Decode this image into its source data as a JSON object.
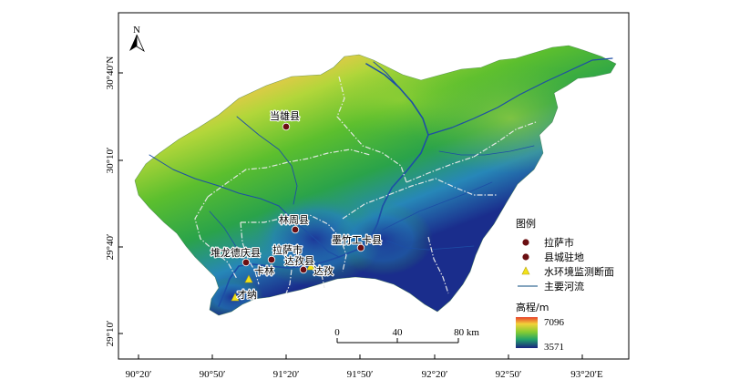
{
  "north": {
    "label": "N"
  },
  "axes": {
    "x_ticks": [
      "90°20′",
      "90°50′",
      "91°20′",
      "91°50′",
      "92°20′",
      "92°50′",
      "93°20′E"
    ],
    "y_ticks": [
      "30°40′N",
      "30°10′",
      "29°40′",
      "29°10′"
    ]
  },
  "places": [
    {
      "name": "当雄县",
      "type": "county"
    },
    {
      "name": "林周县",
      "type": "county"
    },
    {
      "name": "墨竹工卡县",
      "type": "county"
    },
    {
      "name": "堆龙德庆县",
      "type": "county"
    },
    {
      "name": "拉萨市",
      "type": "city"
    },
    {
      "name": "达孜县",
      "type": "county"
    },
    {
      "name": "达孜",
      "type": "station"
    },
    {
      "name": "卡林",
      "type": "station"
    },
    {
      "name": "才纳",
      "type": "station"
    }
  ],
  "legend": {
    "title": "图例",
    "items": [
      {
        "label": "拉萨市",
        "symbol": "dot",
        "color": "#6b0f12"
      },
      {
        "label": "县城驻地",
        "symbol": "dot",
        "color": "#6b0f12"
      },
      {
        "label": "水环境监测断面",
        "symbol": "triangle",
        "color": "#f2e21a"
      },
      {
        "label": "主要河流",
        "symbol": "line",
        "color": "#5b86a8"
      }
    ]
  },
  "elevation": {
    "title": "高程/m",
    "max": "7096",
    "min": "3571"
  },
  "scale_bar": {
    "labels": [
      "0",
      "40",
      "80 km"
    ]
  },
  "colors": {
    "high": "#e8402a",
    "mid": "#7cc832",
    "low": "#1c2a8c",
    "river": "#1d4ea6",
    "boundary": "#e8e8e8"
  }
}
